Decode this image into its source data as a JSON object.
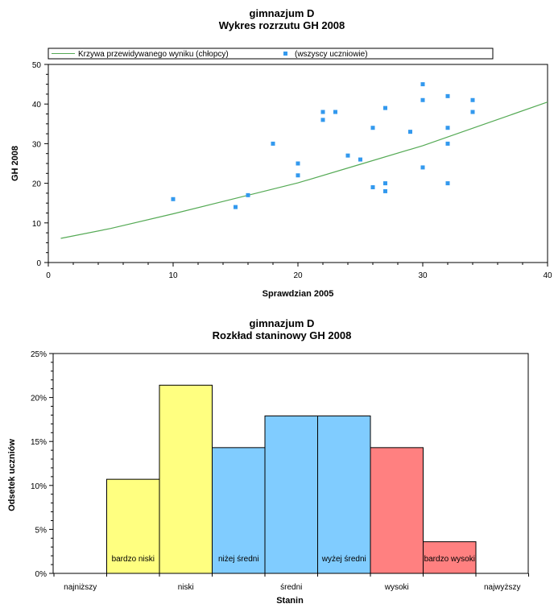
{
  "chart_data": [
    {
      "type": "scatter",
      "title": "gimnazjum D",
      "subtitle": "Wykres rozrzutu GH 2008",
      "xlabel": "Sprawdzian 2005",
      "ylabel": "GH 2008",
      "xlim": [
        0,
        40
      ],
      "ylim": [
        0,
        50
      ],
      "xticks": [
        0,
        10,
        20,
        30,
        40
      ],
      "yticks": [
        0,
        10,
        20,
        30,
        40,
        50
      ],
      "grid": false,
      "legend_position": "top",
      "legend": {
        "curve_label": "Krzywa przewidywanego wyniku (chłopcy)",
        "points_label": "(wszyscy uczniowie)"
      },
      "colors": {
        "points": "#3399ee",
        "curve": "#55aa55"
      },
      "curve": {
        "x": [
          1,
          5,
          10,
          15,
          20,
          25,
          30,
          35,
          40
        ],
        "y": [
          6.1,
          8.6,
          12.3,
          16.2,
          20.1,
          24.8,
          29.5,
          35.0,
          40.5
        ]
      },
      "points": {
        "x": [
          10,
          15,
          16,
          18,
          20,
          20,
          22,
          22,
          23,
          24,
          25,
          26,
          26,
          27,
          27,
          27,
          29,
          30,
          30,
          30,
          32,
          32,
          32,
          32,
          34,
          34
        ],
        "y": [
          16,
          14,
          17,
          30,
          25,
          22,
          38,
          36,
          38,
          27,
          26,
          34,
          19,
          39,
          20,
          18,
          33,
          45,
          41,
          24,
          42,
          34,
          30,
          20,
          41,
          38
        ]
      }
    },
    {
      "type": "bar",
      "title": "gimnazjum D",
      "subtitle": "Rozkład staninowy GH 2008",
      "xlabel": "Stanin",
      "ylabel": "Odsetek uczniów",
      "ylim": [
        0,
        25
      ],
      "yticks": [
        0,
        5,
        10,
        15,
        20,
        25
      ],
      "ytick_suffix": "%",
      "grid": false,
      "category_labels": [
        "najniższy",
        "niski",
        "średni",
        "wysoki",
        "najwyższy"
      ],
      "categories": [
        1,
        2,
        3,
        4,
        5,
        6,
        7,
        8,
        9
      ],
      "values": [
        0,
        10.7,
        21.4,
        14.3,
        17.9,
        17.9,
        14.3,
        3.6,
        0
      ],
      "bar_colors": [
        "#ffff80",
        "#ffff80",
        "#ffff80",
        "#80ccff",
        "#80ccff",
        "#80ccff",
        "#ff8080",
        "#ff8080",
        "#ff8080"
      ],
      "bar_annotations": [
        {
          "stanin": 2,
          "text": "bardzo niski"
        },
        {
          "stanin": 4,
          "text": "niżej średni"
        },
        {
          "stanin": 6,
          "text": "wyżej średni"
        },
        {
          "stanin": 8,
          "text": "bardzo wysoki"
        }
      ]
    }
  ]
}
